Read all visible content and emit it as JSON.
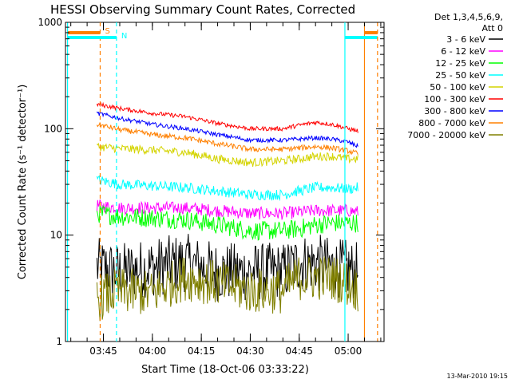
{
  "chart_data": {
    "type": "line",
    "title": "HESSI Observing Summary Count Rates, Corrected",
    "xlabel": "Start Time (18-Oct-06 03:33:22)",
    "ylabel": "Corrected Count Rate (s⁻¹ detector⁻¹)",
    "footer_date": "13-Mar-2010 19:15",
    "y_scale": "log",
    "ylim": [
      1,
      1000
    ],
    "xlim": [
      "03:33:22",
      "05:11:00"
    ],
    "x_ticks": [
      "03:45",
      "04:00",
      "04:15",
      "04:30",
      "04:45",
      "05:00"
    ],
    "y_ticks": [
      "1",
      "10",
      "100",
      "1000"
    ],
    "legend_position": "top-right",
    "legend_header": [
      "Det 1,3,4,5,6,9,",
      "Att 0"
    ],
    "series": [
      {
        "name": "3 - 6 keV",
        "color": "#000000",
        "x": [
          "03:43",
          "03:50",
          "04:00",
          "04:10",
          "04:20",
          "04:30",
          "04:40",
          "04:45",
          "04:50",
          "04:55",
          "05:00",
          "05:03"
        ],
        "y": [
          5,
          4.5,
          5,
          5.5,
          4.5,
          4.5,
          4.5,
          5.5,
          5.5,
          5,
          4.8,
          4.5
        ],
        "noise": 0.28
      },
      {
        "name": "6 - 12 keV",
        "color": "#ff00ff",
        "x": [
          "03:43",
          "03:50",
          "04:00",
          "04:10",
          "04:20",
          "04:30",
          "04:40",
          "04:45",
          "04:50",
          "04:55",
          "05:00",
          "05:03"
        ],
        "y": [
          19,
          18,
          18,
          18,
          17,
          16,
          16,
          16.5,
          17,
          17,
          17,
          16.5
        ],
        "noise": 0.06
      },
      {
        "name": "12 - 25 keV",
        "color": "#00ff00",
        "x": [
          "03:43",
          "03:50",
          "04:00",
          "04:10",
          "04:20",
          "04:30",
          "04:40",
          "04:45",
          "04:50",
          "04:55",
          "05:00",
          "05:03"
        ],
        "y": [
          16,
          15,
          14.5,
          14,
          12.5,
          11,
          11,
          11.5,
          12.5,
          13,
          13,
          13
        ],
        "noise": 0.09
      },
      {
        "name": "25 - 50 keV",
        "color": "#00ffff",
        "x": [
          "03:43",
          "03:50",
          "04:00",
          "04:10",
          "04:20",
          "04:30",
          "04:40",
          "04:45",
          "04:50",
          "04:55",
          "05:00",
          "05:03"
        ],
        "y": [
          33,
          30,
          29,
          28,
          26,
          24,
          24,
          26,
          28,
          28,
          27,
          28
        ],
        "noise": 0.05
      },
      {
        "name": "50 - 100 keV",
        "color": "#d4d400",
        "x": [
          "03:43",
          "03:50",
          "04:00",
          "04:10",
          "04:20",
          "04:30",
          "04:40",
          "04:45",
          "04:50",
          "04:55",
          "05:00",
          "05:03"
        ],
        "y": [
          68,
          65,
          63,
          60,
          52,
          48,
          50,
          52,
          55,
          55,
          52,
          52
        ],
        "noise": 0.04
      },
      {
        "name": "100 - 300 keV",
        "color": "#ff0000",
        "x": [
          "03:43",
          "03:50",
          "04:00",
          "04:10",
          "04:20",
          "04:30",
          "04:40",
          "04:45",
          "04:50",
          "04:55",
          "05:00",
          "05:03"
        ],
        "y": [
          170,
          155,
          140,
          130,
          112,
          100,
          100,
          108,
          115,
          110,
          100,
          95
        ],
        "noise": 0.02
      },
      {
        "name": "300 - 800 keV",
        "color": "#0000ff",
        "x": [
          "03:43",
          "03:50",
          "04:00",
          "04:10",
          "04:20",
          "04:30",
          "04:40",
          "04:45",
          "04:50",
          "04:55",
          "05:00",
          "05:03"
        ],
        "y": [
          140,
          125,
          110,
          100,
          88,
          78,
          78,
          80,
          82,
          80,
          75,
          68
        ],
        "noise": 0.02
      },
      {
        "name": "800 - 7000 keV",
        "color": "#ff8000",
        "x": [
          "03:43",
          "03:50",
          "04:00",
          "04:10",
          "04:20",
          "04:30",
          "04:40",
          "04:45",
          "04:50",
          "04:55",
          "05:00",
          "05:03"
        ],
        "y": [
          110,
          98,
          88,
          82,
          72,
          64,
          64,
          66,
          68,
          66,
          62,
          58
        ],
        "noise": 0.025
      },
      {
        "name": "7000 - 20000 keV",
        "color": "#808000",
        "x": [
          "03:43",
          "03:50",
          "04:00",
          "04:10",
          "04:20",
          "04:30",
          "04:40",
          "04:45",
          "04:50",
          "04:55",
          "05:00",
          "05:03"
        ],
        "y": [
          2.5,
          3,
          2.8,
          4,
          3.5,
          3,
          3,
          4,
          4,
          4,
          3.5,
          3
        ],
        "noise": 0.22
      }
    ],
    "markers": [
      {
        "label": "S",
        "color": "#ff8000",
        "style": "dashed",
        "x": "03:44",
        "bar": [
          "03:34",
          "03:44"
        ]
      },
      {
        "label": "",
        "color": "#ff8000",
        "style": "solid",
        "x": "05:05",
        "bar": [
          "05:05",
          "05:09"
        ]
      },
      {
        "label": "N",
        "color": "#00ffff",
        "style": "dashed",
        "x": "03:49",
        "bar": [
          "03:34",
          "03:49"
        ]
      },
      {
        "label": "",
        "color": "#00ffff",
        "style": "solid",
        "x": "04:59",
        "bar": [
          "04:59",
          "05:09"
        ]
      }
    ],
    "extra_lines": [
      {
        "color": "#00ffff",
        "style": "solid",
        "x": "03:34"
      },
      {
        "color": "#ff8000",
        "style": "dashed",
        "x": "05:09"
      }
    ]
  }
}
